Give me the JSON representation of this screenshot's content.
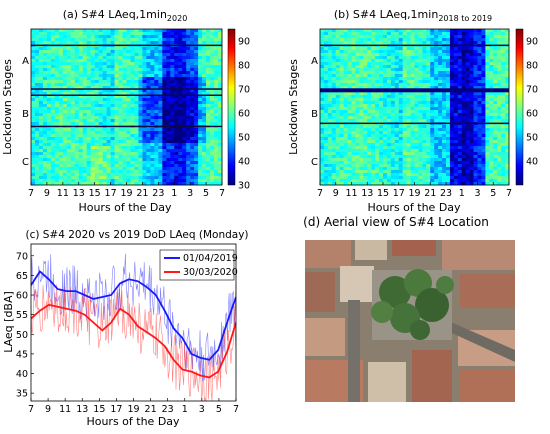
{
  "colors": {
    "colormap": [
      "#00007f",
      "#0000ff",
      "#007fff",
      "#00ffff",
      "#7fff7f",
      "#ffff00",
      "#ff7f00",
      "#ff0000",
      "#7f0000"
    ],
    "series_2019": "#1a1aff",
    "series_2020": "#ff1a1a",
    "aerial_base": "#8a7e6e"
  },
  "chart_data": [
    {
      "type": "heatmap",
      "title": "(a) S#4 LAeq,1min",
      "title_sub": "2020",
      "xlabel": "Hours of the Day",
      "ylabel": "Lockdown Stages",
      "x_ticks": [
        "7",
        "9",
        "11",
        "13",
        "15",
        "17",
        "19",
        "21",
        "23",
        "1",
        "3",
        "5",
        "7"
      ],
      "stage_labels": [
        "A",
        "B",
        "C"
      ],
      "colorbar": {
        "min": 30,
        "max": 95,
        "ticks": [
          "30",
          "40",
          "50",
          "60",
          "70",
          "80",
          "90"
        ]
      }
    },
    {
      "type": "heatmap",
      "title": "(b) S#4 LAeq,1min",
      "title_sub": "2018 to 2019",
      "xlabel": "Hours of the Day",
      "ylabel": "Lockdown Stages",
      "x_ticks": [
        "7",
        "9",
        "11",
        "13",
        "15",
        "17",
        "19",
        "21",
        "23",
        "1",
        "3",
        "5",
        "7"
      ],
      "stage_labels": [
        "A",
        "B",
        "C"
      ],
      "colorbar": {
        "min": 30,
        "max": 95,
        "ticks": [
          "40",
          "50",
          "60",
          "70",
          "80",
          "90"
        ]
      }
    },
    {
      "type": "line",
      "title": "(c) S#4 2020 vs 2019 DoD LAeq (Monday)",
      "xlabel": "Hours of the Day",
      "ylabel": "LAeq [dBA]",
      "x_ticks": [
        "7",
        "9",
        "11",
        "13",
        "15",
        "17",
        "19",
        "21",
        "23",
        "1",
        "3",
        "5",
        "7"
      ],
      "y_ticks": [
        "35",
        "40",
        "45",
        "50",
        "55",
        "60",
        "65",
        "70"
      ],
      "ylim": [
        33,
        73
      ],
      "legend_position": "top-right",
      "series": [
        {
          "name": "01/04/2019",
          "color": "#1a1aff",
          "values": [
            62.5,
            66,
            64,
            61.5,
            61,
            61,
            60,
            59,
            59.5,
            60,
            63,
            64,
            63.5,
            62,
            60,
            56,
            51.5,
            49,
            45,
            44,
            43.5,
            46,
            53,
            59.5
          ]
        },
        {
          "name": "30/03/2020",
          "color": "#ff1a1a",
          "values": [
            54,
            56,
            57.5,
            57,
            56.5,
            56,
            55,
            53,
            51,
            53,
            56.5,
            55,
            52,
            50.5,
            49,
            47,
            43.5,
            41,
            40.5,
            39.5,
            39,
            40.5,
            45.5,
            53
          ]
        }
      ]
    }
  ],
  "aerial": {
    "caption": "(d) Aerial view of S#4 Location"
  }
}
